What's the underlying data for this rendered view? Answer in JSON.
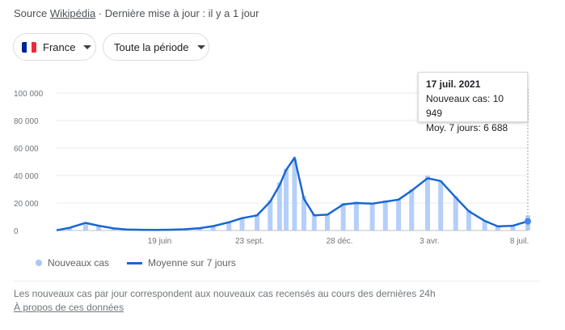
{
  "header": {
    "source_prefix": "Source",
    "source_link": "Wikipédia",
    "updated": " · Dernière mise à jour : il y a 1 jour"
  },
  "filters": {
    "country": "France",
    "period": "Toute la période"
  },
  "tooltip": {
    "date": "17 juil. 2021",
    "new_cases": "Nouveaux cas: 10 949",
    "avg7": "Moy. 7 jours: 6 688"
  },
  "legend": {
    "daily": "Nouveaux cas",
    "avg": "Moyenne sur 7 jours"
  },
  "footnote": {
    "text": "Les nouveaux cas par jour correspondent aux nouveaux cas recensés au cours des dernières 24h",
    "link": "À propos de ces données"
  },
  "colors": {
    "bars": "#a8c7fa",
    "line": "#1967d2",
    "flag": [
      "#002395",
      "#ffffff",
      "#ed2939"
    ]
  },
  "chart_data": {
    "type": "bar",
    "ylim": [
      0,
      100000
    ],
    "yticks": [
      0,
      20000,
      40000,
      60000,
      80000,
      100000
    ],
    "ytick_labels": [
      "0",
      "20 000",
      "40 000",
      "60 000",
      "80 000",
      "100 000"
    ],
    "xtick_labels": [
      "19 juin",
      "23 sept.",
      "28 déc.",
      "3 avr.",
      "8 juil."
    ],
    "x_dates": [
      "2020-03-01",
      "2020-03-15",
      "2020-04-01",
      "2020-04-15",
      "2020-05-01",
      "2020-05-15",
      "2020-06-01",
      "2020-06-15",
      "2020-07-01",
      "2020-07-15",
      "2020-08-01",
      "2020-08-15",
      "2020-09-01",
      "2020-09-15",
      "2020-10-01",
      "2020-10-15",
      "2020-10-25",
      "2020-11-01",
      "2020-11-10",
      "2020-11-20",
      "2020-12-01",
      "2020-12-15",
      "2021-01-01",
      "2021-01-15",
      "2021-02-01",
      "2021-02-15",
      "2021-03-01",
      "2021-03-15",
      "2021-04-01",
      "2021-04-15",
      "2021-05-01",
      "2021-05-15",
      "2021-06-01",
      "2021-06-15",
      "2021-07-01",
      "2021-07-17"
    ],
    "series": [
      {
        "name": "Nouveaux cas",
        "values": [
          200,
          2500,
          4500,
          3000,
          1200,
          600,
          500,
          400,
          600,
          900,
          1800,
          3500,
          6500,
          9500,
          12000,
          22000,
          35000,
          45000,
          52000,
          25000,
          12000,
          12000,
          20000,
          21000,
          20000,
          22000,
          23000,
          30000,
          40000,
          36000,
          25000,
          15000,
          7000,
          3000,
          3500,
          10949
        ]
      },
      {
        "name": "Moyenne sur 7 jours",
        "values": [
          200,
          2000,
          5500,
          3500,
          1500,
          700,
          500,
          400,
          600,
          900,
          1700,
          3200,
          6000,
          9000,
          11000,
          21000,
          33000,
          44000,
          53000,
          23000,
          11000,
          11500,
          19000,
          20000,
          19500,
          21000,
          22500,
          29000,
          38000,
          36000,
          24000,
          14000,
          7000,
          3000,
          3500,
          6688
        ]
      }
    ]
  }
}
